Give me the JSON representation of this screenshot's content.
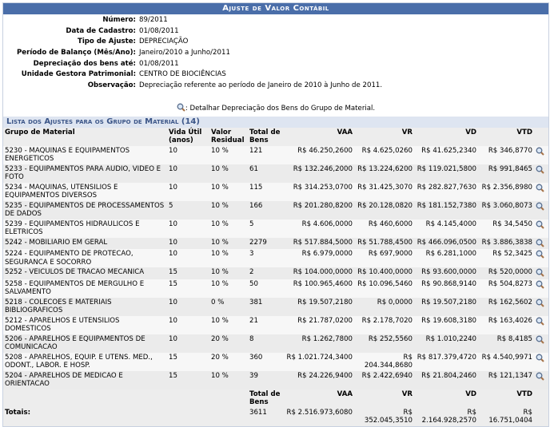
{
  "header": {
    "title": "Ajuste de Valor Contábil"
  },
  "fields": [
    {
      "label": "Número:",
      "value": "89/2011"
    },
    {
      "label": "Data de Cadastro:",
      "value": "01/08/2011"
    },
    {
      "label": "Tipo de Ajuste:",
      "value": "DEPRECIAÇÃO"
    },
    {
      "label": "Período de Balanço (Mês/Ano):",
      "value": "Janeiro/2010 a Junho/2011"
    },
    {
      "label": "Depreciação dos bens até:",
      "value": "01/08/2011"
    },
    {
      "label": "Unidade Gestora Patrimonial:",
      "value": "CENTRO DE BIOCIÊNCIAS"
    },
    {
      "label": "Observação:",
      "value": "Depreciação referente ao período de Janeiro de 2010 à Junho de 2011."
    }
  ],
  "legend": {
    "text": ": Detalhar Depreciação dos Bens do Grupo de Material."
  },
  "list": {
    "title": "Lista dos Ajustes para os Grupo de Material (14)",
    "columns": [
      "Grupo de Material",
      "Vida Útil (anos)",
      "Valor Residual",
      "Total de Bens",
      "VAA",
      "VR",
      "VD",
      "VTD"
    ],
    "rows": [
      [
        "5230 - MAQUINAS E EQUIPAMENTOS ENERGETICOS",
        "10",
        "10 %",
        "121",
        "R$ 46.250,2600",
        "R$ 4.625,0260",
        "R$ 41.625,2340",
        "R$ 346,8770"
      ],
      [
        "5233 - EQUIPAMENTOS PARA AUDIO, VIDEO E FOTO",
        "10",
        "10 %",
        "61",
        "R$ 132.246,2000",
        "R$ 13.224,6200",
        "R$ 119.021,5800",
        "R$ 991,8465"
      ],
      [
        "5234 - MAQUINAS, UTENSILIOS E EQUIPAMENTOS DIVERSOS",
        "10",
        "10 %",
        "115",
        "R$ 314.253,0700",
        "R$ 31.425,3070",
        "R$ 282.827,7630",
        "R$ 2.356,8980"
      ],
      [
        "5235 - EQUIPAMENTOS DE PROCESSAMENTOS DE DADOS",
        "5",
        "10 %",
        "166",
        "R$ 201.280,8200",
        "R$ 20.128,0820",
        "R$ 181.152,7380",
        "R$ 3.060,8073"
      ],
      [
        "5239 - EQUIPAMENTOS HIDRAULICOS E ELETRICOS",
        "10",
        "10 %",
        "5",
        "R$ 4.606,0000",
        "R$ 460,6000",
        "R$ 4.145,4000",
        "R$ 34,5450"
      ],
      [
        "5242 - MOBILIARIO EM GERAL",
        "10",
        "10 %",
        "2279",
        "R$ 517.884,5000",
        "R$ 51.788,4500",
        "R$ 466.096,0500",
        "R$ 3.886,3838"
      ],
      [
        "5224 - EQUIPAMENTO DE PROTECAO, SEGURANCA E SOCORRO",
        "10",
        "10 %",
        "3",
        "R$ 6.979,0000",
        "R$ 697,9000",
        "R$ 6.281,1000",
        "R$ 52,3425"
      ],
      [
        "5252 - VEICULOS DE TRACAO MECANICA",
        "15",
        "10 %",
        "2",
        "R$ 104.000,0000",
        "R$ 10.400,0000",
        "R$ 93.600,0000",
        "R$ 520,0000"
      ],
      [
        "5258 - EQUIPAMENTOS DE MERGULHO E SALVAMENTO",
        "15",
        "10 %",
        "50",
        "R$ 100.965,4600",
        "R$ 10.096,5460",
        "R$ 90.868,9140",
        "R$ 504,8273"
      ],
      [
        "5218 - COLECOES E MATERIAIS BIBLIOGRAFICOS",
        "10",
        "0 %",
        "381",
        "R$ 19.507,2180",
        "R$ 0,0000",
        "R$ 19.507,2180",
        "R$ 162,5602"
      ],
      [
        "5212 - APARELHOS E UTENSILIOS DOMESTICOS",
        "10",
        "10 %",
        "21",
        "R$ 21.787,0200",
        "R$ 2.178,7020",
        "R$ 19.608,3180",
        "R$ 163,4026"
      ],
      [
        "5206 - APARELHOS E EQUIPAMENTOS DE COMUNICACAO",
        "10",
        "20 %",
        "8",
        "R$ 1.262,7800",
        "R$ 252,5560",
        "R$ 1.010,2240",
        "R$ 8,4185"
      ],
      [
        "5208 - APARELHOS, EQUIP. E UTENS. MED., ODONT., LABOR. E HOSP.",
        "15",
        "20 %",
        "360",
        "R$ 1.021.724,3400",
        "R$ 204.344,8680",
        "R$ 817.379,4720",
        "R$ 4.540,9971"
      ],
      [
        "5204 - APARELHOS DE MEDICAO E ORIENTACAO",
        "15",
        "10 %",
        "39",
        "R$ 24.226,9400",
        "R$ 2.422,6940",
        "R$ 21.804,2460",
        "R$ 121,1347"
      ]
    ],
    "footer": {
      "label": "Totais:",
      "columns": [
        "Total de Bens",
        "VAA",
        "VR",
        "VD",
        "VTD"
      ],
      "values": [
        "3611",
        "R$ 2.516.973,6080",
        "R$ 352.045,3510",
        "R$ 2.164.928,2570",
        "R$ 16.751,0404"
      ]
    }
  }
}
